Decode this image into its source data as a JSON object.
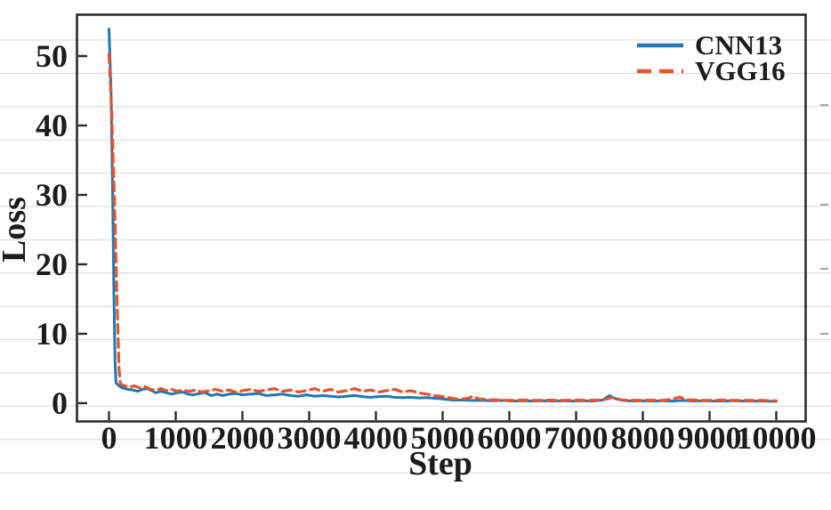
{
  "figure": {
    "background": "#ffffff",
    "axis_color": "#2b2b2b",
    "grid_color": "#d8d8d8",
    "text_color": "#1c1c1c"
  },
  "chart_data": {
    "type": "line",
    "title": "",
    "xlabel": "Step",
    "ylabel": "Loss",
    "xlim": [
      -480,
      10440
    ],
    "ylim": [
      -2.63,
      55.96
    ],
    "x_ticks": [
      0,
      1000,
      2000,
      3000,
      4000,
      5000,
      6000,
      7000,
      8000,
      9000,
      10000
    ],
    "x_tick_labels": [
      "0",
      "1000",
      "2000",
      "3000",
      "4000",
      "5000",
      "6000",
      "7000",
      "8000",
      "9000",
      "10000"
    ],
    "y_ticks": [
      0,
      10,
      20,
      30,
      40,
      50
    ],
    "y_tick_labels": [
      "0",
      "10",
      "20",
      "30",
      "40",
      "50"
    ],
    "grid": "faint horizontal rules, evenly spaced, full width",
    "legend_position": "upper right, no frame",
    "tick_direction": "in",
    "series": [
      {
        "name": "CNN13",
        "color": "#1f77b4",
        "line_style": "solid",
        "line_width": 3,
        "points": [
          [
            0,
            53.9
          ],
          [
            30,
            45
          ],
          [
            55,
            30
          ],
          [
            75,
            15
          ],
          [
            90,
            6
          ],
          [
            105,
            2.9
          ],
          [
            150,
            2.5
          ],
          [
            200,
            2.2
          ],
          [
            280,
            2.0
          ],
          [
            360,
            1.9
          ],
          [
            430,
            1.7
          ],
          [
            500,
            2.0
          ],
          [
            570,
            2.1
          ],
          [
            640,
            1.8
          ],
          [
            700,
            1.5
          ],
          [
            780,
            1.7
          ],
          [
            860,
            1.5
          ],
          [
            940,
            1.3
          ],
          [
            1020,
            1.5
          ],
          [
            1100,
            1.6
          ],
          [
            1180,
            1.3
          ],
          [
            1260,
            1.2
          ],
          [
            1350,
            1.4
          ],
          [
            1440,
            1.5
          ],
          [
            1530,
            1.1
          ],
          [
            1620,
            1.3
          ],
          [
            1700,
            1.1
          ],
          [
            1800,
            1.3
          ],
          [
            1900,
            1.4
          ],
          [
            2000,
            1.2
          ],
          [
            2120,
            1.3
          ],
          [
            2240,
            1.4
          ],
          [
            2360,
            1.1
          ],
          [
            2480,
            1.2
          ],
          [
            2600,
            1.3
          ],
          [
            2720,
            1.1
          ],
          [
            2840,
            1.0
          ],
          [
            2960,
            1.2
          ],
          [
            3080,
            1.0
          ],
          [
            3200,
            1.1
          ],
          [
            3320,
            1.0
          ],
          [
            3440,
            0.9
          ],
          [
            3560,
            1.0
          ],
          [
            3680,
            1.1
          ],
          [
            3800,
            0.95
          ],
          [
            3920,
            0.85
          ],
          [
            4040,
            0.95
          ],
          [
            4160,
            1.0
          ],
          [
            4280,
            0.85
          ],
          [
            4400,
            0.8
          ],
          [
            4520,
            0.85
          ],
          [
            4640,
            0.75
          ],
          [
            4760,
            0.8
          ],
          [
            4880,
            0.7
          ],
          [
            5000,
            0.6
          ],
          [
            5150,
            0.45
          ],
          [
            5300,
            0.45
          ],
          [
            5450,
            0.4
          ],
          [
            5600,
            0.4
          ],
          [
            5750,
            0.35
          ],
          [
            5900,
            0.4
          ],
          [
            6050,
            0.3
          ],
          [
            6200,
            0.35
          ],
          [
            6350,
            0.3
          ],
          [
            6500,
            0.35
          ],
          [
            6650,
            0.3
          ],
          [
            6800,
            0.35
          ],
          [
            6950,
            0.3
          ],
          [
            7100,
            0.35
          ],
          [
            7250,
            0.3
          ],
          [
            7400,
            0.45
          ],
          [
            7500,
            1.1
          ],
          [
            7600,
            0.6
          ],
          [
            7700,
            0.4
          ],
          [
            7850,
            0.3
          ],
          [
            8000,
            0.35
          ],
          [
            8150,
            0.3
          ],
          [
            8300,
            0.35
          ],
          [
            8450,
            0.3
          ],
          [
            8600,
            0.4
          ],
          [
            8750,
            0.3
          ],
          [
            8900,
            0.35
          ],
          [
            9050,
            0.3
          ],
          [
            9200,
            0.3
          ],
          [
            9350,
            0.35
          ],
          [
            9500,
            0.3
          ],
          [
            9650,
            0.3
          ],
          [
            9800,
            0.3
          ],
          [
            10000,
            0.25
          ]
        ]
      },
      {
        "name": "VGG16",
        "color": "#ea5228",
        "line_style": "dashed",
        "line_width": 3.2,
        "points": [
          [
            0,
            50.3
          ],
          [
            40,
            42
          ],
          [
            80,
            30
          ],
          [
            120,
            15
          ],
          [
            150,
            5
          ],
          [
            170,
            2.8
          ],
          [
            230,
            2.5
          ],
          [
            300,
            2.3
          ],
          [
            380,
            2.5
          ],
          [
            460,
            2.2
          ],
          [
            540,
            2.4
          ],
          [
            620,
            2.0
          ],
          [
            700,
            1.9
          ],
          [
            780,
            2.1
          ],
          [
            860,
            1.8
          ],
          [
            940,
            2.0
          ],
          [
            1020,
            1.7
          ],
          [
            1100,
            1.9
          ],
          [
            1200,
            1.7
          ],
          [
            1300,
            1.9
          ],
          [
            1400,
            1.6
          ],
          [
            1500,
            1.8
          ],
          [
            1600,
            2.0
          ],
          [
            1700,
            1.7
          ],
          [
            1800,
            1.9
          ],
          [
            1900,
            1.6
          ],
          [
            2000,
            1.8
          ],
          [
            2120,
            2.0
          ],
          [
            2240,
            1.7
          ],
          [
            2360,
            1.9
          ],
          [
            2480,
            2.1
          ],
          [
            2600,
            1.7
          ],
          [
            2720,
            1.9
          ],
          [
            2840,
            1.6
          ],
          [
            2960,
            1.8
          ],
          [
            3080,
            2.1
          ],
          [
            3200,
            1.7
          ],
          [
            3320,
            2.0
          ],
          [
            3440,
            1.6
          ],
          [
            3560,
            1.8
          ],
          [
            3680,
            2.1
          ],
          [
            3800,
            1.7
          ],
          [
            3920,
            1.9
          ],
          [
            4040,
            1.6
          ],
          [
            4160,
            1.8
          ],
          [
            4280,
            2.0
          ],
          [
            4400,
            1.6
          ],
          [
            4520,
            1.8
          ],
          [
            4640,
            1.5
          ],
          [
            4760,
            1.3
          ],
          [
            4880,
            1.1
          ],
          [
            5000,
            0.95
          ],
          [
            5120,
            0.75
          ],
          [
            5240,
            0.55
          ],
          [
            5380,
            0.7
          ],
          [
            5450,
            1.0
          ],
          [
            5550,
            0.6
          ],
          [
            5700,
            0.5
          ],
          [
            5850,
            0.45
          ],
          [
            6000,
            0.4
          ],
          [
            6200,
            0.45
          ],
          [
            6400,
            0.4
          ],
          [
            6600,
            0.45
          ],
          [
            6800,
            0.4
          ],
          [
            7000,
            0.45
          ],
          [
            7200,
            0.4
          ],
          [
            7400,
            0.5
          ],
          [
            7550,
            0.8
          ],
          [
            7700,
            0.45
          ],
          [
            7900,
            0.4
          ],
          [
            8100,
            0.45
          ],
          [
            8300,
            0.4
          ],
          [
            8450,
            0.6
          ],
          [
            8550,
            0.9
          ],
          [
            8650,
            0.5
          ],
          [
            8800,
            0.45
          ],
          [
            9000,
            0.4
          ],
          [
            9200,
            0.45
          ],
          [
            9400,
            0.4
          ],
          [
            9600,
            0.4
          ],
          [
            9800,
            0.4
          ],
          [
            10000,
            0.35
          ]
        ]
      }
    ]
  }
}
